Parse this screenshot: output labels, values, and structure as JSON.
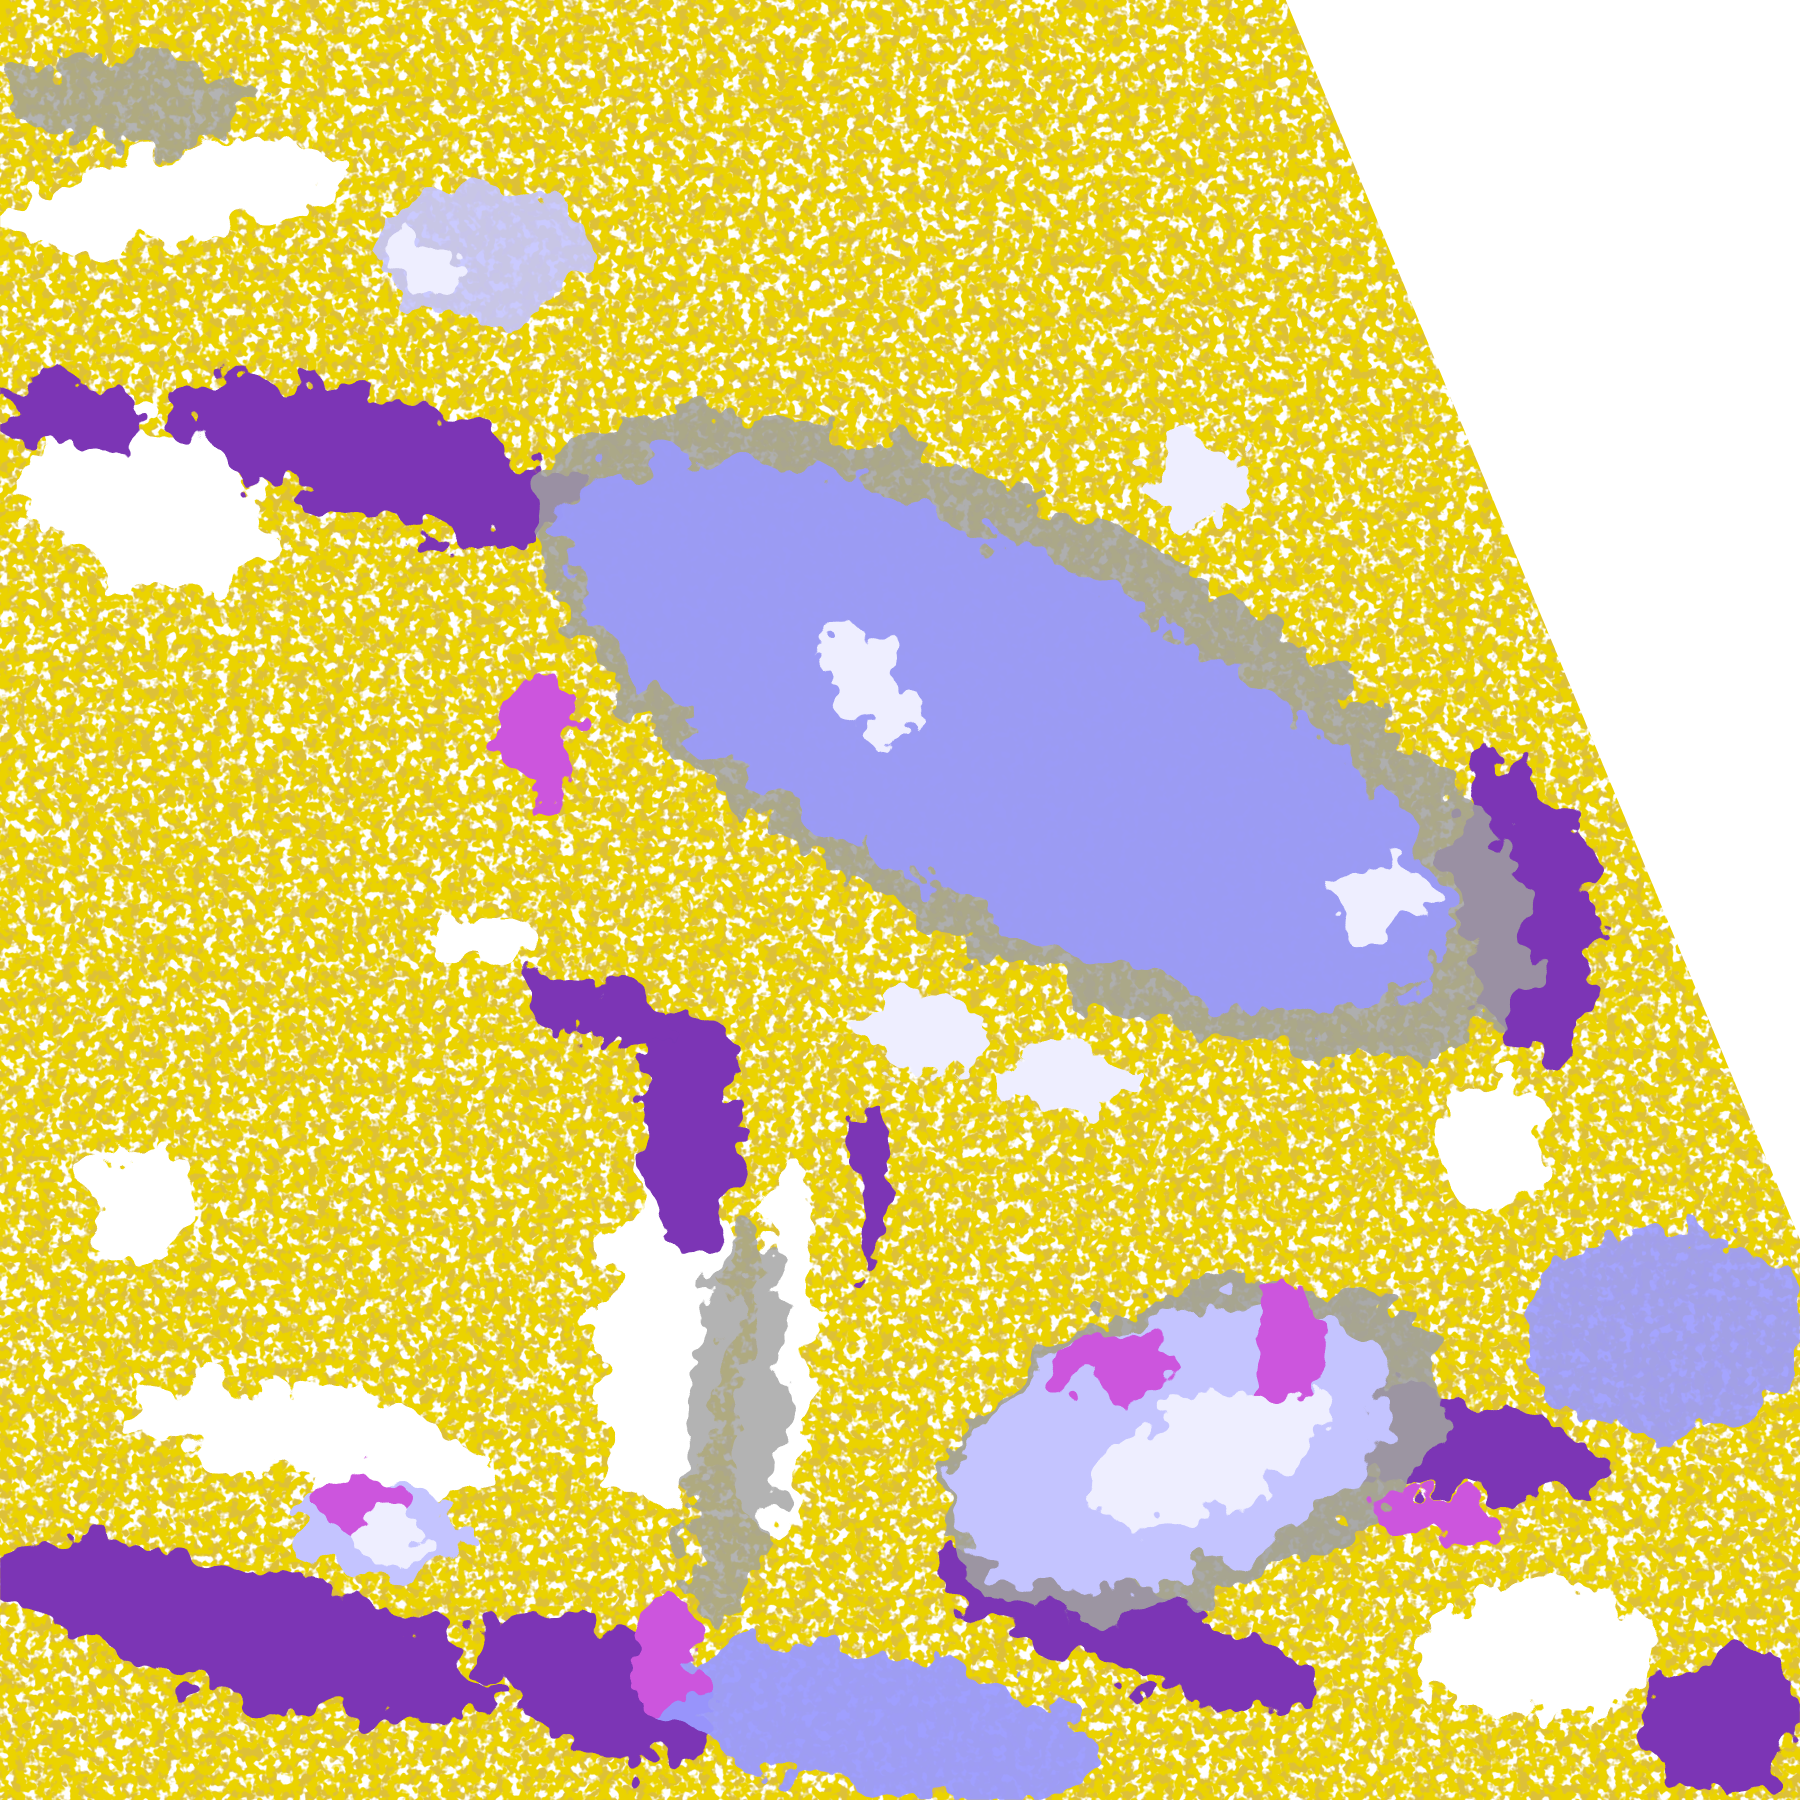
{
  "map": {
    "palette": {
      "background": "#ffffff",
      "gold_dark": "#b8860b",
      "gold": "#d4a600",
      "purple": "#7b35b5",
      "magenta": "#cc55dd",
      "lavender": "#9a9aff",
      "lavender_light": "#c4c4ff",
      "pale": "#eeeeff",
      "gray": "#a0a0a0"
    }
  }
}
